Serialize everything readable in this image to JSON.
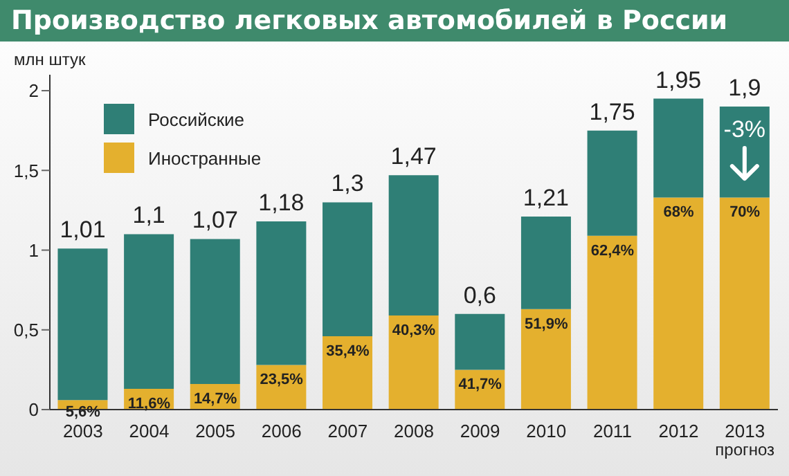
{
  "chart_data": {
    "type": "bar",
    "title": "Производство легковых автомобилей в России",
    "ylabel": "млн штук",
    "stacked": true,
    "categories": [
      "2003",
      "2004",
      "2005",
      "2006",
      "2007",
      "2008",
      "2009",
      "2010",
      "2011",
      "2012",
      "2013"
    ],
    "series": [
      {
        "name": "Иностранные",
        "color": "#e4b02e",
        "values": [
          0.06,
          0.13,
          0.16,
          0.28,
          0.46,
          0.59,
          0.25,
          0.63,
          1.09,
          1.33,
          1.33
        ]
      },
      {
        "name": "Российские",
        "color": "#2f7f76",
        "values": [
          0.95,
          0.97,
          0.91,
          0.9,
          0.84,
          0.88,
          0.35,
          0.58,
          0.66,
          0.62,
          0.57
        ]
      }
    ],
    "totals": [
      "1,01",
      "1,1",
      "1,07",
      "1,18",
      "1,3",
      "1,47",
      "0,6",
      "1,21",
      "1,75",
      "1,95",
      "1,9"
    ],
    "ylim": [
      0,
      2.1
    ],
    "yticks": [
      0,
      {
        "value": 0.5,
        "label": "0,5"
      },
      1,
      {
        "value": 1.5,
        "label": "1,5"
      },
      2
    ],
    "legend": "top left",
    "annotations": [
      {
        "text": "5,6%",
        "x": "2003",
        "y": 0.06
      },
      {
        "text": "11,6%",
        "x": "2004",
        "y": 0.13
      },
      {
        "text": "14,7%",
        "x": "2005",
        "y": 0.16
      },
      {
        "text": "23,5%",
        "x": "2006",
        "y": 0.28
      },
      {
        "text": "35,4%",
        "x": "2007",
        "y": 0.46
      },
      {
        "text": "40,3%",
        "x": "2008",
        "y": 0.59
      },
      {
        "text": "41,7%",
        "x": "2009",
        "y": 0.25
      },
      {
        "text": "51,9%",
        "x": "2010",
        "y": 0.63
      },
      {
        "text": "62,4%",
        "x": "2011",
        "y": 1.09
      },
      {
        "text": "68%",
        "x": "2012",
        "y": 1.33
      },
      {
        "text": "70%",
        "x": "2013",
        "y": 1.33
      },
      "-3%",
      "прогноз"
    ]
  }
}
